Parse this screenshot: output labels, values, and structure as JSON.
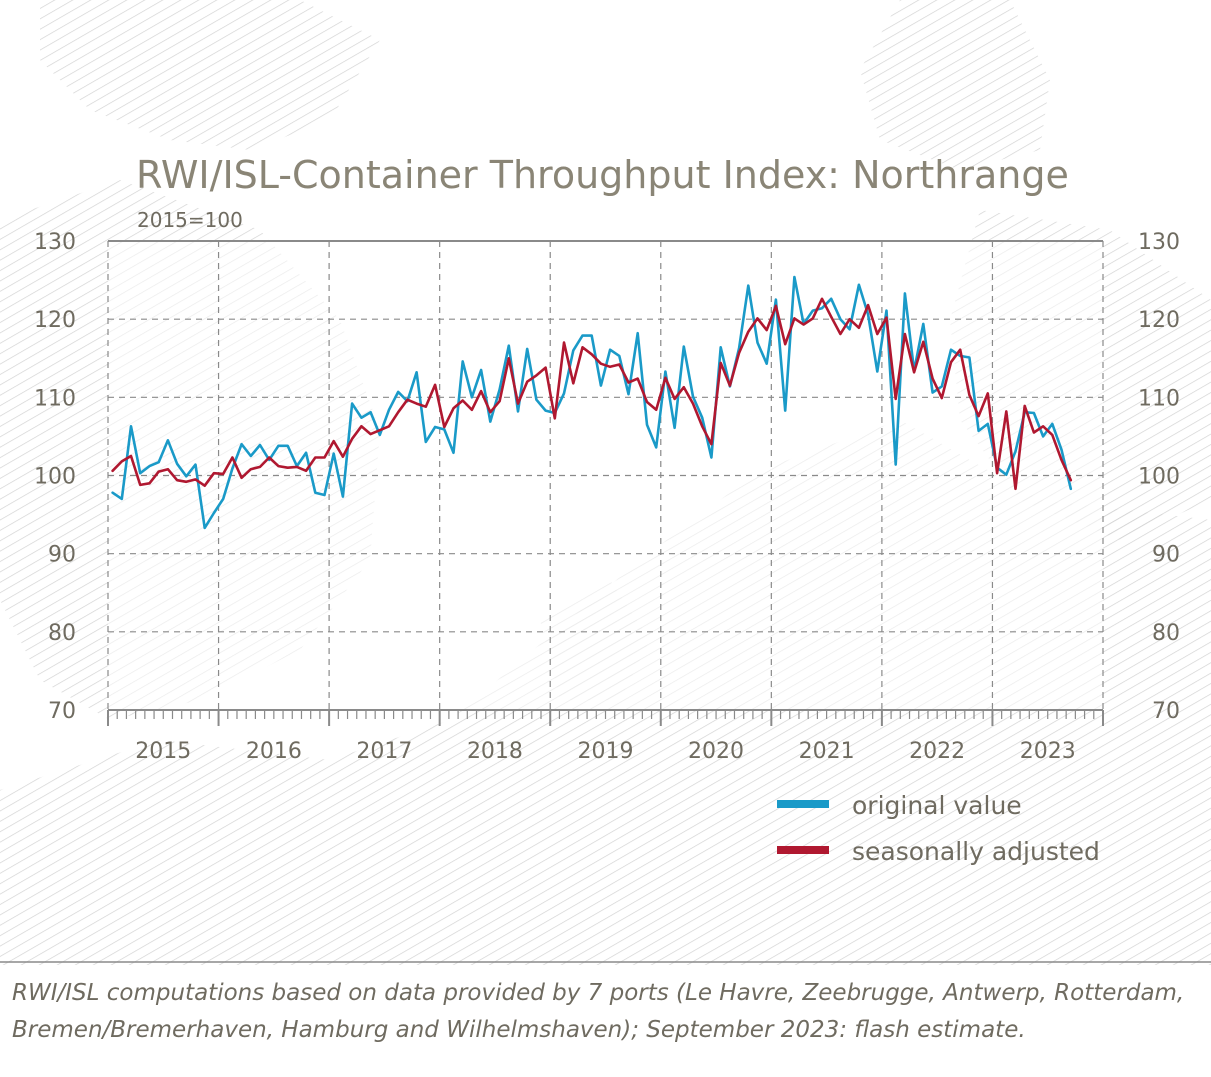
{
  "chart_data": {
    "type": "line",
    "title": "RWI/ISL-Container Throughput Index: Northrange",
    "subtitle": "2015=100",
    "ylim": [
      70,
      130
    ],
    "y_ticks": [
      70,
      80,
      90,
      100,
      110,
      120,
      130
    ],
    "x_ticks": [
      "2015",
      "2016",
      "2017",
      "2018",
      "2019",
      "2020",
      "2021",
      "2022",
      "2023"
    ],
    "x_start": "2015-01",
    "x_end": "2023-09",
    "grid": true,
    "legend_position": "bottom-right",
    "series": [
      {
        "name": "original value",
        "color": "#1a9ac8",
        "values": [
          97.8,
          97.0,
          106.3,
          100.3,
          101.2,
          101.7,
          104.5,
          101.5,
          99.9,
          101.4,
          93.3,
          95.2,
          97.0,
          100.9,
          104.0,
          102.5,
          103.9,
          102.0,
          103.8,
          103.8,
          101.2,
          102.9,
          97.8,
          97.5,
          102.8,
          97.3,
          109.2,
          107.4,
          108.1,
          105.2,
          108.4,
          110.7,
          109.5,
          113.2,
          104.3,
          106.2,
          105.9,
          102.9,
          114.6,
          110.0,
          113.5,
          106.9,
          111.0,
          116.6,
          108.2,
          116.2,
          109.7,
          108.3,
          108.0,
          110.5,
          116.0,
          117.9,
          117.9,
          111.5,
          116.1,
          115.3,
          110.4,
          118.2,
          106.5,
          103.6,
          113.3,
          106.1,
          116.5,
          110.1,
          107.4,
          102.3,
          116.4,
          111.4,
          116.3,
          124.3,
          117.0,
          114.3,
          122.5,
          108.3,
          125.4,
          119.4,
          121.1,
          121.4,
          122.6,
          120.0,
          118.7,
          124.4,
          120.6,
          113.3,
          121.1,
          101.4,
          123.3,
          113.4,
          119.4,
          110.6,
          111.4,
          116.1,
          115.3,
          115.1,
          105.7,
          106.6,
          101.0,
          100.1,
          103.1,
          108.1,
          108.0,
          105.0,
          106.6,
          103.3,
          98.3
        ]
      },
      {
        "name": "seasonally adjusted",
        "color": "#b01830",
        "values": [
          100.6,
          101.8,
          102.5,
          98.8,
          99.0,
          100.5,
          100.8,
          99.4,
          99.2,
          99.5,
          98.7,
          100.3,
          100.2,
          102.3,
          99.7,
          100.8,
          101.1,
          102.3,
          101.2,
          101.0,
          101.1,
          100.6,
          102.3,
          102.3,
          104.4,
          102.4,
          104.7,
          106.3,
          105.3,
          105.8,
          106.3,
          108.1,
          109.7,
          109.2,
          108.8,
          111.6,
          106.2,
          108.6,
          109.6,
          108.4,
          110.8,
          108.1,
          109.5,
          115.0,
          109.2,
          112.0,
          112.8,
          113.8,
          107.3,
          117.0,
          111.8,
          116.4,
          115.5,
          114.3,
          113.9,
          114.2,
          111.9,
          112.4,
          109.4,
          108.4,
          112.5,
          109.8,
          111.3,
          109.2,
          106.3,
          104.0,
          114.4,
          111.5,
          115.7,
          118.4,
          120.1,
          118.6,
          121.7,
          116.8,
          120.1,
          119.3,
          120.1,
          122.6,
          120.3,
          118.1,
          120.0,
          118.9,
          121.8,
          118.1,
          120.2,
          109.8,
          118.1,
          113.2,
          117.1,
          112.4,
          109.9,
          114.5,
          116.1,
          110.3,
          107.6,
          110.5,
          100.3,
          108.2,
          98.3,
          108.9,
          105.5,
          106.3,
          105.2,
          102.0,
          99.4
        ]
      }
    ]
  },
  "source": "RWI/ISL computations based on data provided by 7 ports (Le Havre, Zeebrugge, Antwerp, Rotterdam, Bremen/Bremerhaven, Hamburg and Wilhelmshaven); September 2023: flash estimate."
}
